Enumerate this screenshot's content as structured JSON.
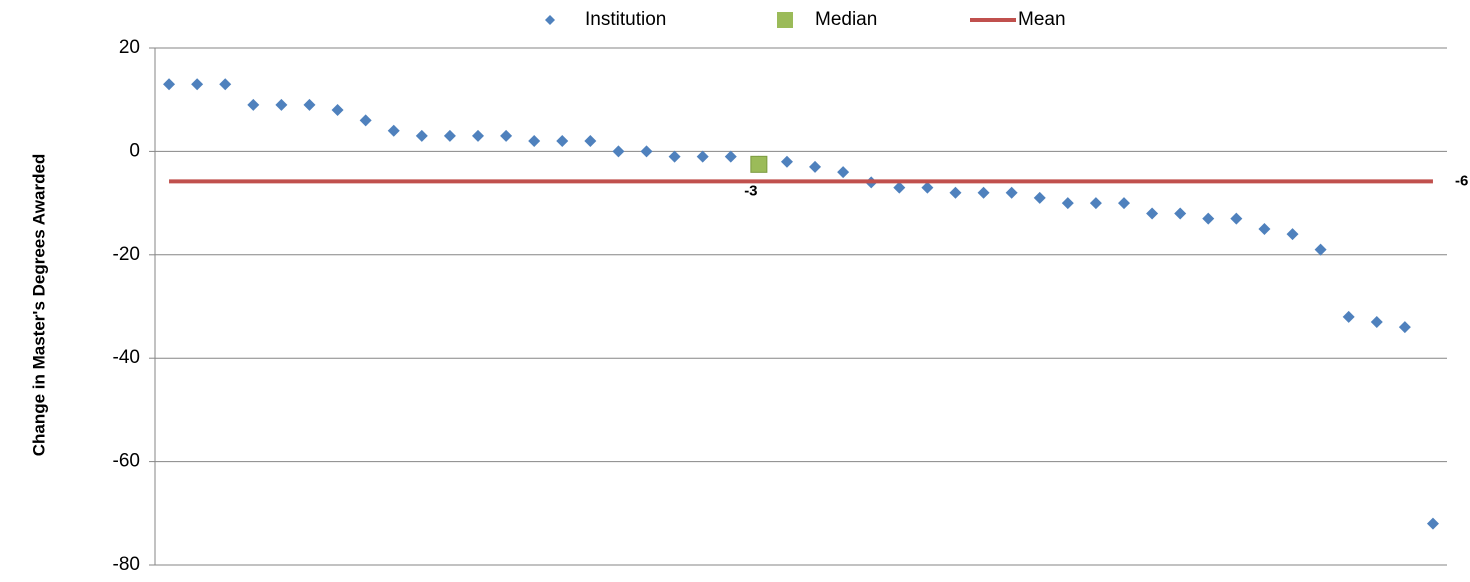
{
  "chart_data": {
    "type": "line",
    "y_label": "Change in Master's Degrees Awarded",
    "ylim": [
      -80,
      20
    ],
    "yticks": [
      -80,
      -60,
      -40,
      -20,
      0,
      20
    ],
    "grid": true,
    "legend": "top",
    "series": [
      {
        "name": "Institution",
        "color": "#4f81bd",
        "marker": "diamond",
        "values": [
          13,
          13,
          13,
          9,
          9,
          9,
          8,
          6,
          4,
          3,
          3,
          3,
          3,
          2,
          2,
          2,
          0,
          0,
          -1,
          -1,
          -1,
          -2,
          -2,
          -3,
          -4,
          -6,
          -7,
          -7,
          -8,
          -8,
          -8,
          -9,
          -10,
          -10,
          -10,
          -12,
          -12,
          -13,
          -13,
          -15,
          -16,
          -19,
          -32,
          -33,
          -34,
          -72
        ]
      },
      {
        "name": "Median",
        "color": "#9bbb59",
        "marker": "square",
        "values": [
          null,
          null,
          null,
          null,
          null,
          null,
          null,
          null,
          null,
          null,
          null,
          null,
          null,
          null,
          null,
          null,
          null,
          null,
          null,
          null,
          null,
          -2.5,
          null,
          null,
          null,
          null,
          null,
          null,
          null,
          null,
          null,
          null,
          null,
          null,
          null,
          null,
          null,
          null,
          null,
          null,
          null,
          null,
          null,
          null,
          null,
          null
        ],
        "value_labels": [
          null,
          null,
          null,
          null,
          null,
          null,
          null,
          null,
          null,
          null,
          null,
          null,
          null,
          null,
          null,
          null,
          null,
          null,
          null,
          null,
          null,
          "-3",
          null,
          null,
          null,
          null,
          null,
          null,
          null,
          null,
          null,
          null,
          null,
          null,
          null,
          null,
          null,
          null,
          null,
          null,
          null,
          null,
          null,
          null,
          null,
          null
        ]
      },
      {
        "name": "Mean",
        "color": "#c0504d",
        "marker": "line",
        "values": [
          -5.8,
          -5.8,
          -5.8,
          -5.8,
          -5.8,
          -5.8,
          -5.8,
          -5.8,
          -5.8,
          -5.8,
          -5.8,
          -5.8,
          -5.8,
          -5.8,
          -5.8,
          -5.8,
          -5.8,
          -5.8,
          -5.8,
          -5.8,
          -5.8,
          -5.8,
          -5.8,
          -5.8,
          -5.8,
          -5.8,
          -5.8,
          -5.8,
          -5.8,
          -5.8,
          -5.8,
          -5.8,
          -5.8,
          -5.8,
          -5.8,
          -5.8,
          -5.8,
          -5.8,
          -5.8,
          -5.8,
          -5.8,
          -5.8,
          -5.8,
          -5.8,
          -5.8,
          -5.8
        ],
        "value_labels": [
          null,
          null,
          null,
          null,
          null,
          null,
          null,
          null,
          null,
          null,
          null,
          null,
          null,
          null,
          null,
          null,
          null,
          null,
          null,
          null,
          null,
          null,
          null,
          null,
          null,
          null,
          null,
          null,
          null,
          null,
          null,
          null,
          null,
          null,
          null,
          null,
          null,
          null,
          null,
          null,
          null,
          null,
          null,
          null,
          null,
          "-6"
        ]
      }
    ]
  }
}
